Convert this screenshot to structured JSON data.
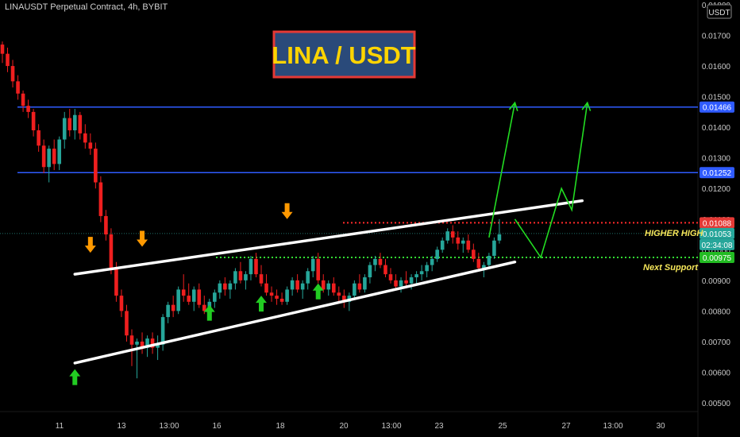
{
  "symbol_header": "LINAUSDT Perpetual Contract, 4h, BYBIT",
  "currency_badge": "USDT",
  "title_box": "LINA / USDT",
  "colors": {
    "background": "#000000",
    "up": "#26a69a",
    "down": "#ef1f1f",
    "channel": "#ffffff",
    "resistance": "#2f5bff",
    "projection": "#22dd22",
    "higher_high_line": "#ff2a2a",
    "support_line": "#33dd33",
    "arrow_up": "#22cc22",
    "arrow_down": "#ff9900",
    "title_bg": "#2a4a7a",
    "title_border": "#e53935",
    "title_text": "#ffd400",
    "label_text": "#f5e65a"
  },
  "annotations": {
    "higher_high": "HIGHER HIGH",
    "next_support": "Next Support"
  },
  "price_axis": {
    "ticks": [
      "0.01800",
      "0.01700",
      "0.01600",
      "0.01500",
      "0.01400",
      "0.01300",
      "0.01200",
      "0.01100",
      "0.01000",
      "0.00900",
      "0.00800",
      "0.00700",
      "0.00600",
      "0.00500"
    ],
    "tags": [
      {
        "value": "0.01466",
        "color": "#2f5bff"
      },
      {
        "value": "0.01252",
        "color": "#2f5bff"
      },
      {
        "value": "0.01088",
        "color": "#e53935"
      },
      {
        "value": "0.01053",
        "color": "#26a69a"
      },
      {
        "value": "02:34:08",
        "color": "#26a69a"
      },
      {
        "value": "0.00975",
        "color": "#22bb22"
      }
    ]
  },
  "time_axis": [
    "11",
    "13",
    "13:00",
    "16",
    "18",
    "20",
    "13:00",
    "23",
    "25",
    "27",
    "13:00",
    "30"
  ],
  "chart_data": {
    "type": "candlestick",
    "title": "LINA / USDT",
    "symbol": "LINAUSDT Perpetual Contract, 4h, BYBIT",
    "ylim": [
      0.005,
      0.018
    ],
    "y_ticks": [
      0.018,
      0.017,
      0.016,
      0.015,
      0.014,
      0.013,
      0.012,
      0.011,
      0.01,
      0.009,
      0.008,
      0.007,
      0.006,
      0.005
    ],
    "x_tick_labels": [
      "11",
      "13",
      "13:00",
      "16",
      "18",
      "20",
      "13:00",
      "23",
      "25",
      "27",
      "13:00",
      "30"
    ],
    "levels": {
      "resistance_1": 0.01466,
      "resistance_2": 0.01252,
      "higher_high": 0.01088,
      "last_price": 0.01053,
      "next_support": 0.00975
    },
    "candles": [
      [
        0.0167,
        0.0168,
        0.0161,
        0.0164
      ],
      [
        0.0164,
        0.0166,
        0.0158,
        0.016
      ],
      [
        0.016,
        0.0162,
        0.0153,
        0.0155
      ],
      [
        0.0155,
        0.0157,
        0.0149,
        0.0151
      ],
      [
        0.0151,
        0.0152,
        0.0145,
        0.0147
      ],
      [
        0.0147,
        0.0149,
        0.0143,
        0.0145
      ],
      [
        0.0145,
        0.0146,
        0.0137,
        0.0139
      ],
      [
        0.0139,
        0.0141,
        0.0132,
        0.0134
      ],
      [
        0.0134,
        0.0136,
        0.0125,
        0.0127
      ],
      [
        0.0127,
        0.0134,
        0.0122,
        0.0133
      ],
      [
        0.0133,
        0.0136,
        0.0126,
        0.0128
      ],
      [
        0.0128,
        0.0137,
        0.0126,
        0.0136
      ],
      [
        0.0136,
        0.0145,
        0.0133,
        0.0143
      ],
      [
        0.0143,
        0.0146,
        0.0137,
        0.0139
      ],
      [
        0.0139,
        0.0146,
        0.0136,
        0.0144
      ],
      [
        0.0144,
        0.0145,
        0.0136,
        0.0138
      ],
      [
        0.0138,
        0.0141,
        0.0133,
        0.0135
      ],
      [
        0.0135,
        0.0138,
        0.0131,
        0.0133
      ],
      [
        0.0133,
        0.0135,
        0.012,
        0.0122
      ],
      [
        0.0122,
        0.0124,
        0.0109,
        0.0111
      ],
      [
        0.0111,
        0.0113,
        0.0103,
        0.0105
      ],
      [
        0.0105,
        0.0107,
        0.0092,
        0.0094
      ],
      [
        0.0094,
        0.0096,
        0.0083,
        0.0085
      ],
      [
        0.0085,
        0.0087,
        0.0078,
        0.008
      ],
      [
        0.008,
        0.0082,
        0.007,
        0.0072
      ],
      [
        0.0072,
        0.0074,
        0.0062,
        0.0069
      ],
      [
        0.0069,
        0.0071,
        0.0058,
        0.007
      ],
      [
        0.007,
        0.0073,
        0.0066,
        0.0068
      ],
      [
        0.0068,
        0.0072,
        0.0065,
        0.0071
      ],
      [
        0.0071,
        0.0073,
        0.0066,
        0.0068
      ],
      [
        0.0068,
        0.0072,
        0.0064,
        0.0069
      ],
      [
        0.0069,
        0.0079,
        0.0067,
        0.0078
      ],
      [
        0.0078,
        0.0083,
        0.0076,
        0.0082
      ],
      [
        0.0082,
        0.0085,
        0.0078,
        0.008
      ],
      [
        0.008,
        0.0088,
        0.0079,
        0.0087
      ],
      [
        0.0087,
        0.0092,
        0.0083,
        0.0085
      ],
      [
        0.0085,
        0.0089,
        0.0082,
        0.0083
      ],
      [
        0.0083,
        0.0088,
        0.008,
        0.0087
      ],
      [
        0.0087,
        0.0089,
        0.0081,
        0.0082
      ],
      [
        0.0082,
        0.0085,
        0.0079,
        0.008
      ],
      [
        0.008,
        0.0084,
        0.0078,
        0.0083
      ],
      [
        0.0083,
        0.0087,
        0.0081,
        0.0086
      ],
      [
        0.0086,
        0.009,
        0.0084,
        0.0089
      ],
      [
        0.0089,
        0.0091,
        0.0085,
        0.0087
      ],
      [
        0.0087,
        0.009,
        0.0084,
        0.0089
      ],
      [
        0.0089,
        0.0094,
        0.0087,
        0.0093
      ],
      [
        0.0093,
        0.0096,
        0.0089,
        0.009
      ],
      [
        0.009,
        0.0093,
        0.0087,
        0.0092
      ],
      [
        0.0092,
        0.0098,
        0.009,
        0.0097
      ],
      [
        0.0097,
        0.0099,
        0.0091,
        0.0092
      ],
      [
        0.0092,
        0.0095,
        0.0088,
        0.0089
      ],
      [
        0.0089,
        0.0092,
        0.0085,
        0.0086
      ],
      [
        0.0086,
        0.0088,
        0.0083,
        0.0085
      ],
      [
        0.0085,
        0.0087,
        0.0082,
        0.0084
      ],
      [
        0.0084,
        0.0086,
        0.0082,
        0.0083
      ],
      [
        0.0083,
        0.0088,
        0.0082,
        0.0087
      ],
      [
        0.0087,
        0.0091,
        0.0085,
        0.009
      ],
      [
        0.009,
        0.0092,
        0.0086,
        0.0087
      ],
      [
        0.0087,
        0.009,
        0.0084,
        0.0089
      ],
      [
        0.0089,
        0.0094,
        0.0087,
        0.0093
      ],
      [
        0.0093,
        0.0098,
        0.0091,
        0.0097
      ],
      [
        0.0097,
        0.0099,
        0.0089,
        0.009
      ],
      [
        0.009,
        0.0092,
        0.0086,
        0.0087
      ],
      [
        0.0087,
        0.009,
        0.0085,
        0.0089
      ],
      [
        0.0089,
        0.0091,
        0.0085,
        0.0086
      ],
      [
        0.0086,
        0.0088,
        0.0083,
        0.0085
      ],
      [
        0.0085,
        0.0087,
        0.0081,
        0.0083
      ],
      [
        0.0083,
        0.0086,
        0.008,
        0.0085
      ],
      [
        0.0085,
        0.009,
        0.0084,
        0.0089
      ],
      [
        0.0089,
        0.0092,
        0.0086,
        0.0087
      ],
      [
        0.0087,
        0.0092,
        0.0086,
        0.0091
      ],
      [
        0.0091,
        0.0096,
        0.0089,
        0.0095
      ],
      [
        0.0095,
        0.0098,
        0.0093,
        0.0097
      ],
      [
        0.0097,
        0.0099,
        0.0094,
        0.0095
      ],
      [
        0.0095,
        0.0097,
        0.0091,
        0.0092
      ],
      [
        0.0092,
        0.0094,
        0.0089,
        0.009
      ],
      [
        0.009,
        0.0092,
        0.0087,
        0.0088
      ],
      [
        0.0088,
        0.0091,
        0.0086,
        0.009
      ],
      [
        0.009,
        0.0093,
        0.0088,
        0.0089
      ],
      [
        0.0089,
        0.0092,
        0.0087,
        0.0091
      ],
      [
        0.0091,
        0.0093,
        0.0089,
        0.0092
      ],
      [
        0.0092,
        0.0095,
        0.009,
        0.0093
      ],
      [
        0.0093,
        0.0096,
        0.0091,
        0.0095
      ],
      [
        0.0095,
        0.0098,
        0.0093,
        0.0097
      ],
      [
        0.0097,
        0.0101,
        0.0096,
        0.01
      ],
      [
        0.01,
        0.0104,
        0.0099,
        0.0103
      ],
      [
        0.0103,
        0.0107,
        0.0102,
        0.0106
      ],
      [
        0.0106,
        0.0108,
        0.0102,
        0.0104
      ],
      [
        0.0104,
        0.0106,
        0.01,
        0.0102
      ],
      [
        0.0102,
        0.0104,
        0.0099,
        0.0103
      ],
      [
        0.0103,
        0.0105,
        0.0099,
        0.01
      ],
      [
        0.01,
        0.0102,
        0.0096,
        0.0097
      ],
      [
        0.0097,
        0.0099,
        0.0093,
        0.0094
      ],
      [
        0.0094,
        0.0096,
        0.0091,
        0.0095
      ],
      [
        0.0095,
        0.0099,
        0.0094,
        0.0098
      ],
      [
        0.0098,
        0.0104,
        0.0097,
        0.0103
      ],
      [
        0.0103,
        0.011,
        0.0102,
        0.0105
      ]
    ],
    "channel": {
      "upper": [
        [
          14,
          0.0092
        ],
        [
          112,
          0.0116
        ]
      ],
      "lower": [
        [
          14,
          0.0063
        ],
        [
          99,
          0.0096
        ]
      ]
    },
    "projections": [
      [
        [
          94,
          0.0104
        ],
        [
          99,
          0.0148
        ]
      ],
      [
        [
          99,
          0.011
        ],
        [
          104,
          0.00975
        ],
        [
          108,
          0.012
        ],
        [
          110,
          0.0113
        ],
        [
          113,
          0.0148
        ]
      ]
    ],
    "arrows": {
      "down": [
        [
          17,
          0.0099
        ],
        [
          27,
          0.0101
        ],
        [
          55,
          0.011
        ]
      ],
      "up": [
        [
          14,
          0.0061
        ],
        [
          40,
          0.0082
        ],
        [
          50,
          0.0085
        ],
        [
          61,
          0.0089
        ]
      ]
    }
  }
}
